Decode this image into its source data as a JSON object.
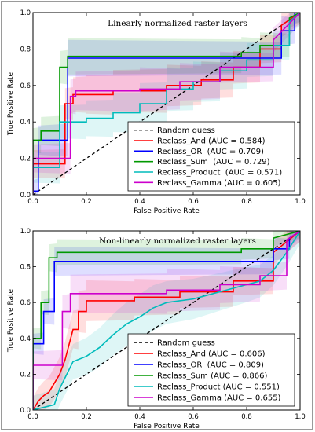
{
  "chart_data": [
    {
      "type": "line",
      "title": "Linearly normalized raster layers",
      "xlabel": "False Positive Rate",
      "ylabel": "True Positive Rate",
      "xlim": [
        0,
        1
      ],
      "ylim": [
        0,
        1
      ],
      "xticks": [
        "0.0",
        "0.2",
        "0.4",
        "0.6",
        "0.8",
        "1.0"
      ],
      "yticks": [
        "0.0",
        "0.2",
        "0.4",
        "0.6",
        "0.8",
        "1.0"
      ],
      "legend_position": "lower-right",
      "legend": {
        "random_label": "Random guess",
        "entries": [
          "Reclass_And (AUC = 0.584)",
          "Reclass_OR  (AUC = 0.709)",
          "Reclass_Sum  (AUC = 0.729)",
          "Reclass_Product  (AUC = 0.571)",
          "Reclass_Gamma (AUC = 0.605)"
        ]
      },
      "random_guess": {
        "x": [
          0,
          1
        ],
        "y": [
          0,
          1
        ],
        "style": "dashed",
        "color": "#000000"
      },
      "series": [
        {
          "color": "#ff0000",
          "x": [
            0,
            0,
            0.12,
            0.12,
            0.15,
            0.15,
            0.2,
            0.2,
            0.3,
            0.3,
            0.5,
            0.5,
            0.63,
            0.63,
            0.75,
            0.75,
            0.85,
            0.85,
            0.93,
            0.93,
            1.0
          ],
          "y": [
            0,
            0.17,
            0.17,
            0.5,
            0.5,
            0.55,
            0.55,
            0.55,
            0.55,
            0.57,
            0.57,
            0.6,
            0.6,
            0.63,
            0.63,
            0.7,
            0.7,
            0.8,
            0.8,
            0.93,
            1.0
          ],
          "band": [
            0.07,
            0.12,
            0.06
          ]
        },
        {
          "color": "#0000ff",
          "x": [
            0,
            0,
            0.02,
            0.02,
            0.13,
            0.13,
            0.93,
            0.93,
            0.98,
            0.98,
            1.0
          ],
          "y": [
            0,
            0.02,
            0.02,
            0.3,
            0.3,
            0.75,
            0.75,
            0.9,
            0.9,
            1.0,
            1.0
          ],
          "band": [
            0.05,
            0.1,
            0.05
          ]
        },
        {
          "color": "#009900",
          "x": [
            0,
            0,
            0.03,
            0.03,
            0.1,
            0.1,
            0.13,
            0.13,
            0.78,
            0.78,
            0.85,
            0.85,
            0.96,
            0.96,
            1.0
          ],
          "y": [
            0,
            0.3,
            0.3,
            0.35,
            0.35,
            0.7,
            0.7,
            0.76,
            0.76,
            0.78,
            0.78,
            0.82,
            0.82,
            0.97,
            1.0
          ],
          "band": [
            0.06,
            0.1,
            0.05
          ]
        },
        {
          "color": "#00bbbb",
          "x": [
            0,
            0,
            0.1,
            0.1,
            0.2,
            0.2,
            0.3,
            0.3,
            0.4,
            0.4,
            0.5,
            0.5,
            0.6,
            0.6,
            0.7,
            0.7,
            0.8,
            0.8,
            0.9,
            0.9,
            0.96,
            0.96,
            1.0
          ],
          "y": [
            0,
            0.15,
            0.15,
            0.4,
            0.4,
            0.42,
            0.42,
            0.45,
            0.45,
            0.5,
            0.5,
            0.58,
            0.58,
            0.62,
            0.62,
            0.68,
            0.68,
            0.74,
            0.74,
            0.82,
            0.82,
            0.95,
            1.0
          ],
          "band": [
            0.08,
            0.12,
            0.07
          ]
        },
        {
          "color": "#cc00cc",
          "x": [
            0,
            0,
            0.14,
            0.14,
            0.16,
            0.16,
            0.4,
            0.4,
            0.55,
            0.55,
            0.7,
            0.7,
            0.9,
            0.9,
            1.0
          ],
          "y": [
            0,
            0.2,
            0.2,
            0.54,
            0.54,
            0.57,
            0.57,
            0.58,
            0.58,
            0.62,
            0.62,
            0.7,
            0.7,
            0.85,
            1.0
          ],
          "band": [
            0.07,
            0.12,
            0.06
          ]
        }
      ]
    },
    {
      "type": "line",
      "title": "Non-linearly normalized raster layers",
      "xlabel": "False Positive Rate",
      "ylabel": "True Positive Rate",
      "xlim": [
        0,
        1
      ],
      "ylim": [
        0,
        1
      ],
      "xticks": [
        "0.0",
        "0.2",
        "0.4",
        "0.6",
        "0.8",
        "1.0"
      ],
      "yticks": [
        "0.0",
        "0.2",
        "0.4",
        "0.6",
        "0.8",
        "1.0"
      ],
      "legend_position": "lower-right",
      "legend": {
        "random_label": "Random guess",
        "entries": [
          "Reclass_And (AUC = 0.606)",
          "Reclass_OR  (AUC = 0.809)",
          "Reclass_Sum (AUC = 0.866)",
          "Reclass_Product (AUC = 0.551)",
          "Reclass_Gamma (AUC = 0.655)"
        ]
      },
      "random_guess": {
        "x": [
          0,
          1
        ],
        "y": [
          0,
          1
        ],
        "style": "dashed",
        "color": "#000000"
      },
      "series": [
        {
          "color": "#ff0000",
          "x": [
            0,
            0.02,
            0.04,
            0.06,
            0.08,
            0.1,
            0.12,
            0.15,
            0.17,
            0.17,
            0.2,
            0.2,
            0.38,
            0.38,
            0.55,
            0.55,
            0.75,
            0.75,
            0.9,
            0.9,
            1.0
          ],
          "y": [
            0,
            0.05,
            0.08,
            0.1,
            0.15,
            0.2,
            0.28,
            0.45,
            0.45,
            0.55,
            0.55,
            0.61,
            0.61,
            0.63,
            0.63,
            0.66,
            0.66,
            0.72,
            0.72,
            0.88,
            1.0
          ],
          "band": [
            0.07,
            0.12,
            0.06
          ]
        },
        {
          "color": "#0000ff",
          "x": [
            0,
            0,
            0.04,
            0.04,
            0.08,
            0.08,
            0.9,
            0.9,
            0.96,
            0.96,
            1.0
          ],
          "y": [
            0,
            0.37,
            0.37,
            0.55,
            0.55,
            0.83,
            0.83,
            0.9,
            0.9,
            0.96,
            1.0
          ],
          "band": [
            0.05,
            0.08,
            0.04
          ]
        },
        {
          "color": "#009900",
          "x": [
            0,
            0,
            0.03,
            0.03,
            0.06,
            0.06,
            0.09,
            0.09,
            0.78,
            0.78,
            0.9,
            0.9,
            1.0
          ],
          "y": [
            0,
            0.4,
            0.4,
            0.6,
            0.6,
            0.85,
            0.85,
            0.88,
            0.88,
            0.9,
            0.9,
            0.96,
            1.0
          ],
          "band": [
            0.05,
            0.08,
            0.04
          ]
        },
        {
          "color": "#00bbbb",
          "x": [
            0,
            0.08,
            0.1,
            0.15,
            0.2,
            0.25,
            0.3,
            0.35,
            0.4,
            0.45,
            0.5,
            0.6,
            0.7,
            0.8,
            0.85,
            0.9,
            0.95,
            1.0
          ],
          "y": [
            0,
            0.03,
            0.12,
            0.27,
            0.3,
            0.35,
            0.42,
            0.48,
            0.52,
            0.57,
            0.6,
            0.62,
            0.66,
            0.7,
            0.72,
            0.78,
            0.88,
            1.0
          ],
          "band": [
            0.08,
            0.13,
            0.07
          ]
        },
        {
          "color": "#cc00cc",
          "x": [
            0,
            0,
            0.11,
            0.11,
            0.14,
            0.14,
            0.5,
            0.5,
            0.7,
            0.7,
            0.85,
            0.85,
            0.95,
            0.95,
            1.0
          ],
          "y": [
            0,
            0.25,
            0.25,
            0.55,
            0.55,
            0.65,
            0.65,
            0.67,
            0.67,
            0.7,
            0.7,
            0.75,
            0.75,
            0.95,
            1.0
          ],
          "band": [
            0.07,
            0.12,
            0.06
          ]
        }
      ]
    }
  ]
}
